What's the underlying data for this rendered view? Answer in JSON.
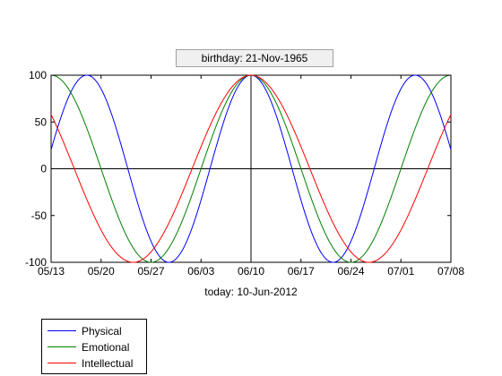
{
  "chart_data": {
    "type": "line",
    "title": "birthday: 21-Nov-1965",
    "xlabel": "today: 10-Jun-2012",
    "ylabel": "",
    "x_range": [
      "2012-05-13",
      "2012-07-08"
    ],
    "ylim": [
      -100,
      100
    ],
    "x_ticks": [
      "05/13",
      "05/20",
      "05/27",
      "06/03",
      "06/10",
      "06/17",
      "06/24",
      "07/01",
      "07/08"
    ],
    "y_ticks": [
      100,
      50,
      0,
      -50,
      -100
    ],
    "today": "2012-06-10",
    "grid": false,
    "legend_position": "bottom-left",
    "series": [
      {
        "name": "Physical",
        "color": "#0000ff",
        "period_days": 23,
        "x": [
          "2012-05-13",
          "2012-05-16",
          "2012-05-19",
          "2012-05-22",
          "2012-05-25",
          "2012-05-28",
          "2012-05-31",
          "2012-06-03",
          "2012-06-06",
          "2012-06-09",
          "2012-06-10",
          "2012-06-13",
          "2012-06-16",
          "2012-06-19",
          "2012-06-22",
          "2012-06-25",
          "2012-06-28",
          "2012-07-01",
          "2012-07-04",
          "2012-07-08"
        ],
        "values": [
          27,
          92,
          90,
          24,
          -61,
          -100,
          -68,
          14,
          83,
          98,
          100,
          68,
          -14,
          -83,
          -98,
          -52,
          33,
          94,
          87,
          14
        ]
      },
      {
        "name": "Emotional",
        "color": "#008000",
        "period_days": 28,
        "x": [
          "2012-05-13",
          "2012-05-16",
          "2012-05-19",
          "2012-05-22",
          "2012-05-25",
          "2012-05-28",
          "2012-05-31",
          "2012-06-03",
          "2012-06-06",
          "2012-06-09",
          "2012-06-10",
          "2012-06-13",
          "2012-06-16",
          "2012-06-19",
          "2012-06-22",
          "2012-06-25",
          "2012-06-28",
          "2012-07-01",
          "2012-07-04",
          "2012-07-08"
        ],
        "values": [
          100,
          78,
          22,
          -43,
          -90,
          -97,
          -62,
          0,
          62,
          97,
          100,
          78,
          22,
          -43,
          -90,
          -97,
          -62,
          0,
          62,
          100
        ]
      },
      {
        "name": "Intellectual",
        "color": "#ff0000",
        "period_days": 33,
        "x": [
          "2012-05-13",
          "2012-05-16",
          "2012-05-19",
          "2012-05-22",
          "2012-05-25",
          "2012-05-28",
          "2012-05-31",
          "2012-06-03",
          "2012-06-06",
          "2012-06-09",
          "2012-06-10",
          "2012-06-13",
          "2012-06-16",
          "2012-06-19",
          "2012-06-22",
          "2012-06-25",
          "2012-06-28",
          "2012-07-01",
          "2012-07-04",
          "2012-07-08"
        ],
        "values": [
          62,
          10,
          -45,
          -85,
          -100,
          -89,
          -54,
          0,
          54,
          96,
          100,
          89,
          54,
          0,
          -54,
          -89,
          -100,
          -76,
          -28,
          46
        ]
      }
    ]
  }
}
